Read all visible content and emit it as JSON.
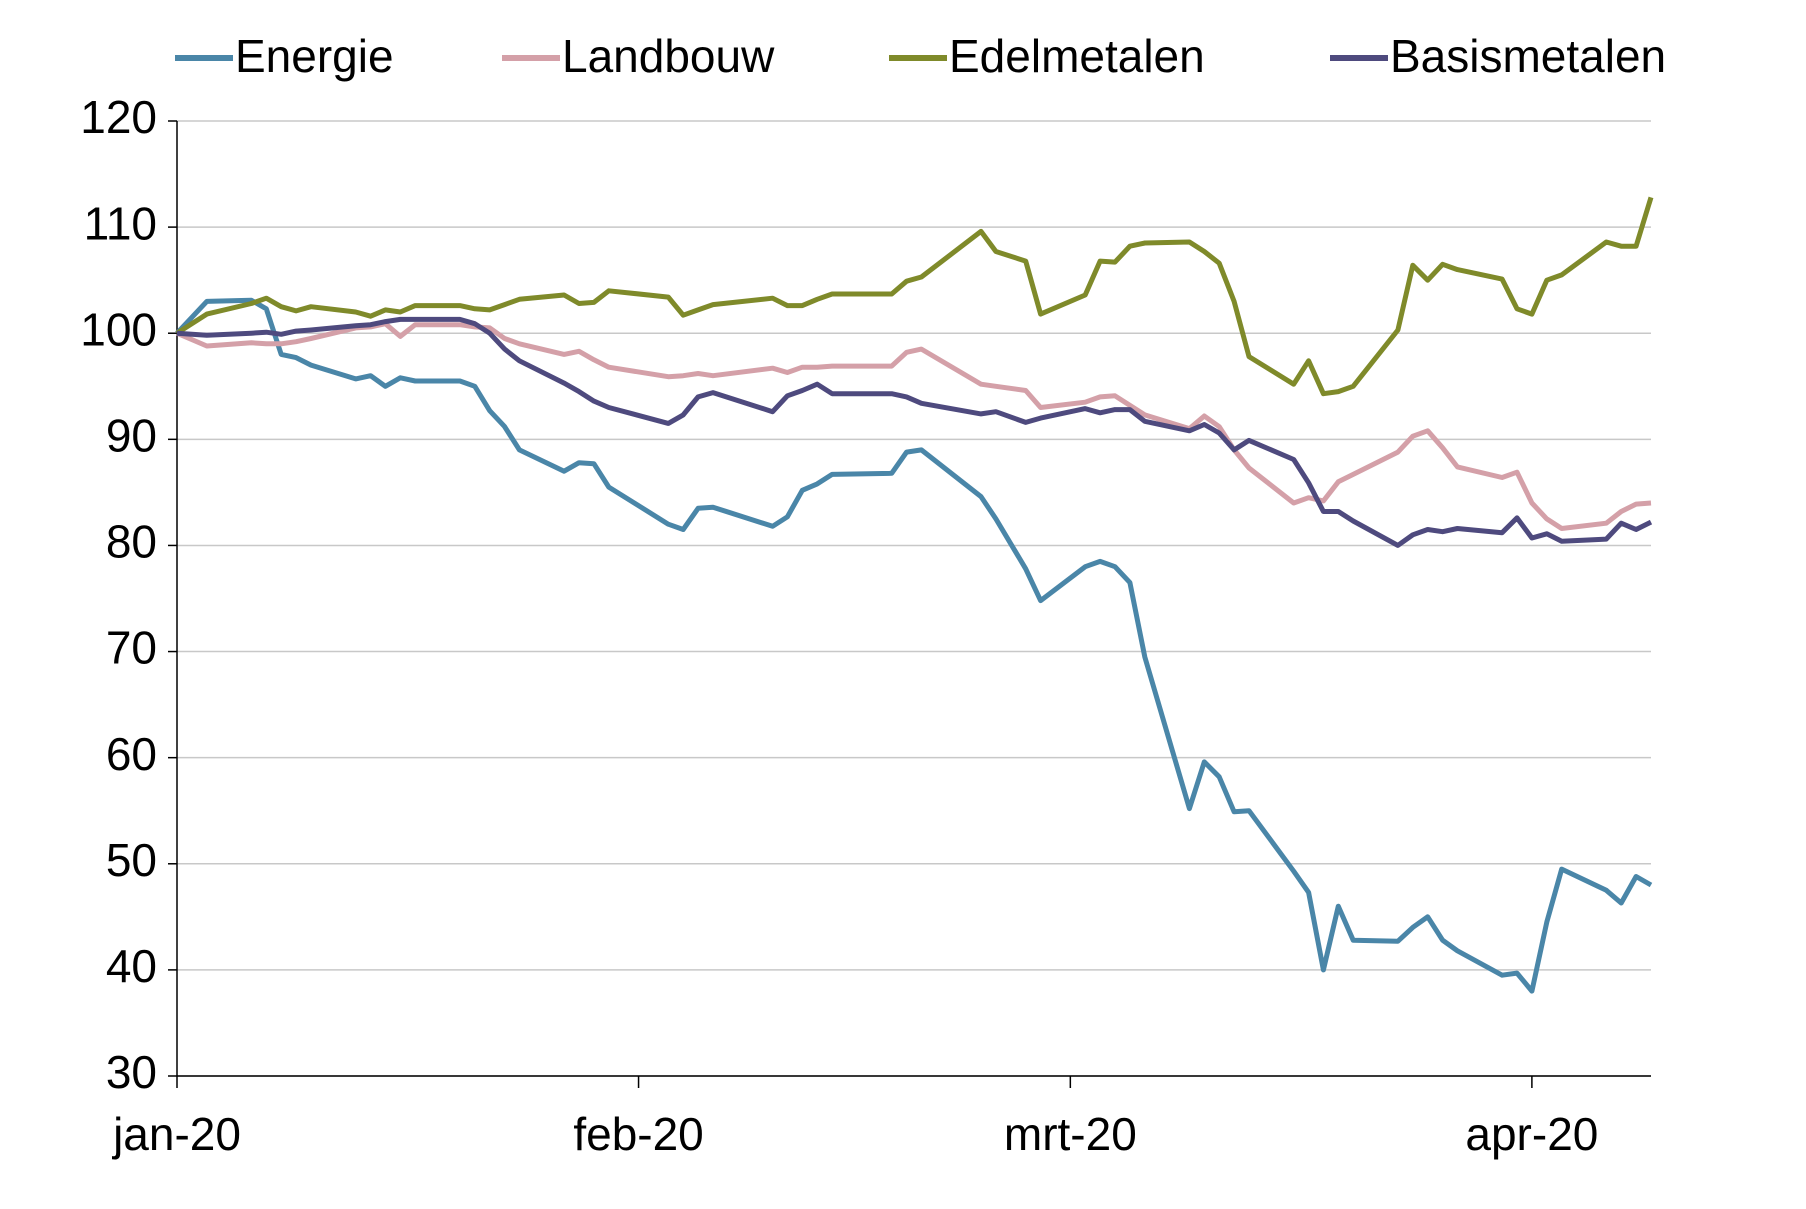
{
  "chart_data": {
    "type": "line",
    "x": [
      0,
      2,
      5,
      6,
      7,
      8,
      9,
      12,
      13,
      14,
      15,
      16,
      19,
      20,
      21,
      22,
      23,
      26,
      27,
      28,
      29,
      33,
      34,
      35,
      36,
      40,
      41,
      42,
      43,
      44,
      48,
      49,
      50,
      54,
      55,
      57,
      58,
      61,
      62,
      63,
      64,
      65,
      68,
      69,
      70,
      71,
      72,
      75,
      76,
      77,
      78,
      79,
      82,
      83,
      84,
      85,
      86,
      89,
      90,
      91,
      92,
      93,
      96,
      97,
      98,
      99
    ],
    "xlim": [
      0,
      99
    ],
    "xticks": [
      {
        "value": 0,
        "label": "jan-20"
      },
      {
        "value": 31,
        "label": "feb-20"
      },
      {
        "value": 60,
        "label": "mrt-20"
      },
      {
        "value": 91,
        "label": "apr-20"
      }
    ],
    "ylim": [
      30,
      120
    ],
    "yticks": [
      30,
      40,
      50,
      60,
      70,
      80,
      90,
      100,
      110,
      120
    ],
    "grid": true,
    "legend": "top",
    "series": [
      {
        "name": "Energie",
        "color": "#4a86a8",
        "values": [
          100,
          103,
          103.1,
          102.3,
          98,
          97.7,
          97,
          95.7,
          96,
          95,
          95.8,
          95.5,
          95.5,
          95,
          92.7,
          91.2,
          89,
          87,
          87.8,
          87.7,
          85.5,
          82,
          81.5,
          83.5,
          83.6,
          81.8,
          82.7,
          85.2,
          85.8,
          86.7,
          86.8,
          88.8,
          89,
          84.6,
          82.5,
          77.8,
          74.8,
          78,
          78.5,
          78,
          76.5,
          69.5,
          55.2,
          59.6,
          58.2,
          54.9,
          55,
          49.3,
          47.3,
          40,
          46,
          42.8,
          42.7,
          44,
          45,
          42.8,
          41.8,
          39.5,
          39.7,
          38,
          44.5,
          49.5,
          47.5,
          46.3,
          48.8,
          48
        ]
      },
      {
        "name": "Landbouw",
        "color": "#d4a0a8",
        "values": [
          100,
          98.8,
          99.1,
          99,
          99,
          99.2,
          99.5,
          100.5,
          100.6,
          100.9,
          99.7,
          100.8,
          100.8,
          100.6,
          100.5,
          99.5,
          99,
          98,
          98.3,
          97.5,
          96.8,
          95.9,
          96,
          96.2,
          96,
          96.7,
          96.3,
          96.8,
          96.8,
          96.9,
          96.9,
          98.2,
          98.5,
          95.2,
          95,
          94.6,
          93,
          93.5,
          94,
          94.1,
          93.2,
          92.3,
          91,
          92.2,
          91.2,
          89,
          87.3,
          84,
          84.5,
          84.2,
          86,
          86.7,
          88.8,
          90.3,
          90.8,
          89.2,
          87.4,
          86.4,
          86.9,
          84,
          82.5,
          81.6,
          82.1,
          83.2,
          83.9,
          84
        ]
      },
      {
        "name": "Edelmetalen",
        "color": "#7f8a2a",
        "values": [
          100,
          101.8,
          102.8,
          103.3,
          102.5,
          102.1,
          102.5,
          102,
          101.6,
          102.2,
          102,
          102.6,
          102.6,
          102.3,
          102.2,
          102.7,
          103.2,
          103.6,
          102.8,
          102.9,
          104,
          103.4,
          101.7,
          102.2,
          102.7,
          103.3,
          102.6,
          102.6,
          103.2,
          103.7,
          103.7,
          104.9,
          105.3,
          109.6,
          107.7,
          106.8,
          101.8,
          103.6,
          106.8,
          106.7,
          108.2,
          108.5,
          108.6,
          107.7,
          106.6,
          103,
          97.8,
          95.2,
          97.4,
          94.3,
          94.5,
          95,
          100.3,
          106.4,
          105,
          106.5,
          106,
          105.1,
          102.3,
          101.8,
          105,
          105.5,
          108.6,
          108.2,
          108.2,
          112.8
        ]
      },
      {
        "name": "Basismetalen",
        "color": "#4e4a7e",
        "values": [
          100,
          99.8,
          100,
          100.1,
          99.9,
          100.2,
          100.3,
          100.7,
          100.8,
          101.1,
          101.3,
          101.3,
          101.3,
          100.9,
          100,
          98.5,
          97.4,
          95.3,
          94.5,
          93.6,
          93,
          91.5,
          92.3,
          94,
          94.4,
          92.6,
          94.1,
          94.6,
          95.2,
          94.3,
          94.3,
          94,
          93.4,
          92.4,
          92.6,
          91.6,
          92,
          92.9,
          92.5,
          92.8,
          92.8,
          91.7,
          90.8,
          91.4,
          90.6,
          89,
          89.9,
          88.1,
          85.9,
          83.2,
          83.2,
          82.3,
          80,
          81,
          81.5,
          81.3,
          81.6,
          81.2,
          82.6,
          80.7,
          81.1,
          80.4,
          80.6,
          82.1,
          81.5,
          82.2
        ]
      }
    ]
  }
}
